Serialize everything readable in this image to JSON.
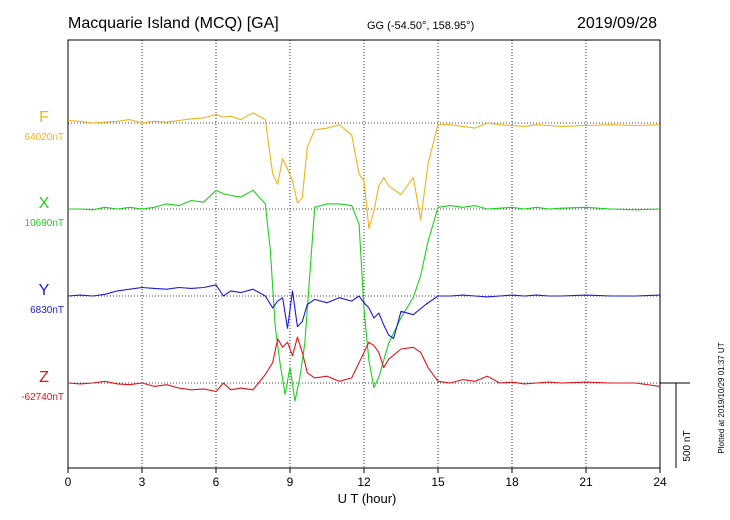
{
  "header": {
    "station": "Macquarie Island (MCQ)  [GA]",
    "coords": "GG (-54.50°, 158.95°)",
    "date": "2019/09/28"
  },
  "footer": {
    "plotted": "Plotted at 2019/10/29 01:37 UT"
  },
  "chart_data": {
    "type": "line",
    "title": "Macquarie Island (MCQ)  [GA]",
    "xlabel": "U T (hour)",
    "xlim": [
      0,
      24
    ],
    "x_ticks": [
      0,
      3,
      6,
      9,
      12,
      15,
      18,
      21,
      24
    ],
    "grid": true,
    "scale_bar": {
      "label": "500 nT",
      "value": 500
    },
    "series": [
      {
        "name": "F",
        "baseline_label": "64020nT",
        "color": "#f0b21c",
        "baseline_nT": 64020,
        "x": [
          0,
          0.5,
          1,
          1.5,
          2,
          2.5,
          3,
          3.5,
          4,
          4.5,
          5,
          5.5,
          6,
          6.3,
          6.6,
          7,
          7.5,
          8,
          8.3,
          8.5,
          8.7,
          8.9,
          9.1,
          9.3,
          9.5,
          9.7,
          10,
          10.5,
          11,
          11.5,
          11.8,
          12,
          12.2,
          12.4,
          12.6,
          12.8,
          13,
          13.5,
          14,
          14.3,
          14.6,
          15,
          15.5,
          16,
          16.5,
          17,
          17.5,
          18,
          18.5,
          19,
          19.5,
          20,
          21,
          22,
          23,
          24
        ],
        "y": [
          64035,
          64030,
          64020,
          64025,
          64030,
          64040,
          64020,
          64030,
          64025,
          64035,
          64045,
          64050,
          64070,
          64055,
          64060,
          64040,
          64080,
          64040,
          63720,
          63660,
          63810,
          63750,
          63680,
          63550,
          63580,
          63880,
          63980,
          63990,
          64010,
          63950,
          63720,
          63680,
          63400,
          63500,
          63650,
          63700,
          63650,
          63600,
          63700,
          63450,
          63780,
          64010,
          64010,
          64000,
          63990,
          64020,
          64010,
          64005,
          64000,
          64010,
          64005,
          64000,
          64005,
          64010,
          64005,
          64010
        ]
      },
      {
        "name": "X",
        "baseline_label": "10690nT",
        "color": "#1cd11c",
        "baseline_nT": 10690,
        "x": [
          0,
          0.5,
          1,
          1.5,
          2,
          2.5,
          3,
          3.5,
          4,
          4.5,
          5,
          5.5,
          6,
          6.3,
          6.6,
          7,
          7.5,
          8,
          8.2,
          8.4,
          8.6,
          8.8,
          9,
          9.2,
          9.4,
          9.6,
          10,
          10.5,
          11,
          11.5,
          11.8,
          12,
          12.2,
          12.4,
          12.6,
          12.8,
          13,
          13.5,
          14,
          14.3,
          14.6,
          15,
          15.5,
          16,
          16.5,
          17,
          17.5,
          18,
          18.5,
          19,
          19.5,
          20,
          21,
          22,
          23,
          24
        ],
        "y": [
          10690,
          10690,
          10685,
          10700,
          10690,
          10700,
          10690,
          10700,
          10720,
          10710,
          10740,
          10730,
          10800,
          10780,
          10770,
          10760,
          10800,
          10720,
          10450,
          10000,
          9780,
          9600,
          9760,
          9560,
          9700,
          9900,
          10700,
          10720,
          10720,
          10710,
          10600,
          10100,
          9800,
          9640,
          9700,
          9800,
          9900,
          10050,
          10170,
          10300,
          10500,
          10700,
          10710,
          10700,
          10710,
          10690,
          10695,
          10700,
          10690,
          10700,
          10690,
          10695,
          10700,
          10690,
          10685,
          10690
        ]
      },
      {
        "name": "Y",
        "baseline_label": "6830nT",
        "color": "#1a1ad6",
        "baseline_nT": 6830,
        "x": [
          0,
          0.5,
          1,
          1.5,
          2,
          2.5,
          3,
          3.5,
          4,
          4.5,
          5,
          5.5,
          6,
          6.3,
          6.6,
          7,
          7.5,
          8,
          8.3,
          8.5,
          8.7,
          8.9,
          9.1,
          9.3,
          9.5,
          9.7,
          10,
          10.5,
          11,
          11.5,
          11.8,
          12,
          12.2,
          12.4,
          12.6,
          12.8,
          13,
          13.2,
          13.5,
          14,
          14.5,
          15,
          15.5,
          16,
          16.5,
          17,
          17.5,
          18,
          18.5,
          19,
          19.5,
          20,
          21,
          22,
          23,
          24
        ],
        "y": [
          6830,
          6835,
          6830,
          6840,
          6860,
          6870,
          6880,
          6875,
          6870,
          6880,
          6875,
          6880,
          6895,
          6830,
          6860,
          6850,
          6870,
          6830,
          6760,
          6800,
          6820,
          6640,
          6860,
          6650,
          6680,
          6780,
          6810,
          6790,
          6820,
          6800,
          6830,
          6790,
          6760,
          6700,
          6730,
          6660,
          6600,
          6580,
          6740,
          6720,
          6780,
          6830,
          6830,
          6835,
          6830,
          6825,
          6830,
          6835,
          6830,
          6835,
          6830,
          6830,
          6835,
          6830,
          6830,
          6835
        ]
      },
      {
        "name": "Z",
        "baseline_label": "-62740nT",
        "color": "#e0141c",
        "baseline_nT": -62740,
        "x": [
          0,
          0.5,
          1,
          1.5,
          2,
          2.5,
          3,
          3.5,
          4,
          4.5,
          5,
          5.5,
          6,
          6.3,
          6.6,
          7,
          7.5,
          8,
          8.3,
          8.5,
          8.7,
          8.9,
          9.1,
          9.3,
          9.5,
          9.7,
          10,
          10.5,
          11,
          11.5,
          11.8,
          12,
          12.2,
          12.4,
          12.6,
          12.8,
          13,
          13.5,
          14,
          14.3,
          14.6,
          15,
          15.5,
          16,
          16.5,
          17,
          17.5,
          18,
          18.5,
          19,
          19.5,
          20,
          21,
          22,
          23,
          24
        ],
        "y": [
          -62740,
          -62745,
          -62740,
          -62730,
          -62745,
          -62750,
          -62740,
          -62760,
          -62750,
          -62770,
          -62780,
          -62775,
          -62790,
          -62740,
          -62780,
          -62770,
          -62780,
          -62690,
          -62620,
          -62480,
          -62530,
          -62500,
          -62580,
          -62470,
          -62560,
          -62680,
          -62710,
          -62700,
          -62730,
          -62710,
          -62620,
          -62560,
          -62500,
          -62520,
          -62560,
          -62650,
          -62600,
          -62540,
          -62530,
          -62560,
          -62650,
          -62730,
          -62740,
          -62720,
          -62730,
          -62700,
          -62740,
          -62735,
          -62745,
          -62740,
          -62735,
          -62740,
          -62735,
          -62740,
          -62740,
          -62760
        ]
      }
    ]
  }
}
